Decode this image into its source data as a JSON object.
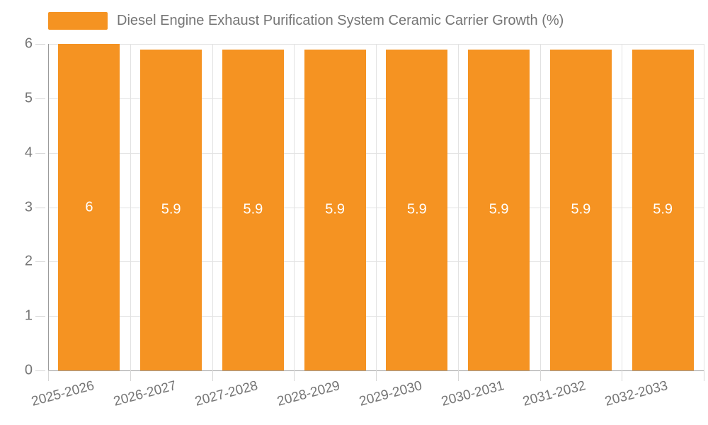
{
  "chart_data": {
    "type": "bar",
    "title": "Diesel Engine Exhaust Purification System Ceramic Carrier Growth (%)",
    "categories": [
      "2025-2026",
      "2026-2027",
      "2027-2028",
      "2028-2029",
      "2029-2030",
      "2030-2031",
      "2031-2032",
      "2032-2033"
    ],
    "values": [
      6,
      5.9,
      5.9,
      5.9,
      5.9,
      5.9,
      5.9,
      5.9
    ],
    "value_labels": [
      "6",
      "5.9",
      "5.9",
      "5.9",
      "5.9",
      "5.9",
      "5.9",
      "5.9"
    ],
    "xlabel": "",
    "ylabel": "",
    "ylim": [
      0,
      6
    ],
    "yticks": [
      0,
      1,
      2,
      3,
      4,
      5,
      6
    ],
    "grid": true,
    "legend_position": "top-left",
    "colors": {
      "bar": "#F59322",
      "bar_label": "#FFFFFF",
      "axis_text": "#757575",
      "axis_line": "#9B9B9B",
      "gridline": "#E2E2E2",
      "tick": "#D6D6D6",
      "background": "#FFFFFF"
    }
  }
}
